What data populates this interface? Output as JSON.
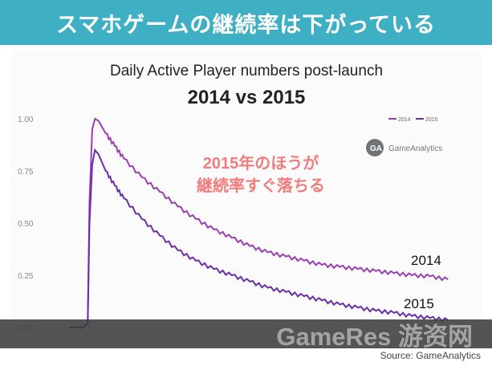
{
  "banner": {
    "title": "スマホゲームの継続率は下がっている"
  },
  "chart_data": {
    "type": "line",
    "title": "Daily Active Player numbers post-launch",
    "subtitle": "2014 vs 2015",
    "xlabel": "",
    "ylabel": "",
    "ylim": [
      0,
      1.0
    ],
    "y_ticks": [
      "0.00",
      "0.25",
      "0.50",
      "0.75",
      "1.00"
    ],
    "x_ticks": [
      "0"
    ],
    "grid": false,
    "legend_placement": "top-right",
    "series": [
      {
        "name": "2014",
        "color": "#9b3fb0",
        "x": [
          -20,
          -5,
          0,
          2,
          5,
          8,
          12,
          16,
          20,
          30,
          40,
          60,
          80,
          100,
          120,
          140,
          160,
          180,
          200,
          220,
          240,
          260,
          280,
          300,
          320,
          340,
          360,
          380,
          400
        ],
        "values": [
          0.0,
          0.0,
          0.02,
          0.6,
          0.95,
          1.0,
          0.99,
          0.96,
          0.93,
          0.87,
          0.81,
          0.72,
          0.65,
          0.58,
          0.52,
          0.47,
          0.43,
          0.39,
          0.36,
          0.34,
          0.32,
          0.3,
          0.29,
          0.28,
          0.27,
          0.26,
          0.25,
          0.245,
          0.23
        ]
      },
      {
        "name": "2015",
        "color": "#6a2fa8",
        "x": [
          -20,
          -5,
          0,
          2,
          5,
          8,
          12,
          16,
          20,
          30,
          40,
          60,
          80,
          100,
          120,
          140,
          160,
          180,
          200,
          220,
          240,
          260,
          280,
          300,
          320,
          340,
          360,
          380,
          400
        ],
        "values": [
          0.0,
          0.0,
          0.02,
          0.5,
          0.78,
          0.85,
          0.83,
          0.79,
          0.75,
          0.68,
          0.62,
          0.52,
          0.44,
          0.37,
          0.32,
          0.28,
          0.25,
          0.22,
          0.19,
          0.17,
          0.15,
          0.13,
          0.11,
          0.095,
          0.08,
          0.07,
          0.055,
          0.045,
          0.035
        ]
      }
    ],
    "annotations": [
      {
        "text": "2015年のほうが",
        "color": "#f07c7c"
      },
      {
        "text": "継続率すぐ落ちる",
        "color": "#f07c7c"
      }
    ],
    "line_labels": [
      "2014",
      "2015"
    ],
    "logo_text": "GameAnalytics",
    "legend_labels": [
      "2014",
      "2015"
    ]
  },
  "watermark": {
    "text": "GameRes 游资网"
  },
  "source": "Source: GameAnalytics"
}
